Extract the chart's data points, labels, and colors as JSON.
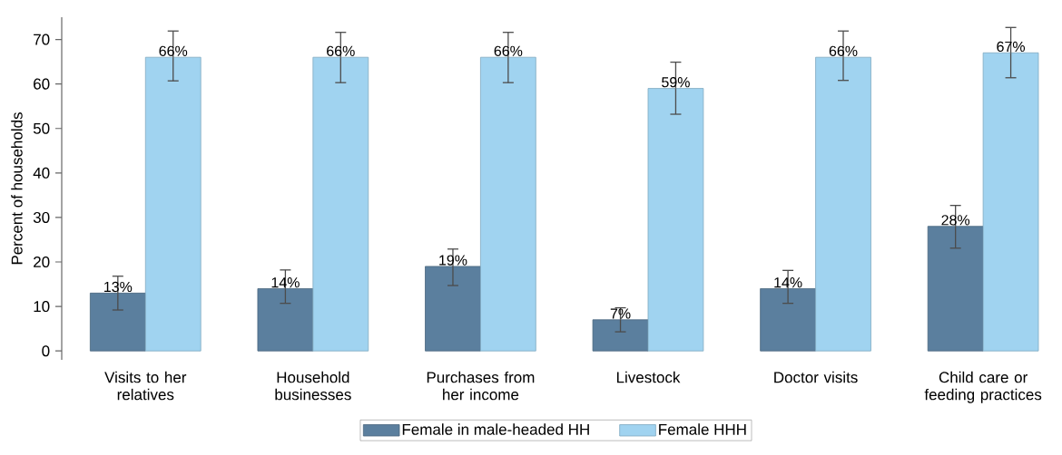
{
  "chart_data": {
    "type": "bar",
    "ylabel": "Percent of households",
    "categories": [
      "Visits to her relatives",
      "Household businesses",
      "Purchases from her income",
      "Livestock",
      "Doctor visits",
      "Child care or feeding practices"
    ],
    "series": [
      {
        "name": "Female in male-headed HH",
        "color": "#5b7f9e",
        "values": [
          13,
          14,
          19,
          7,
          14,
          28
        ],
        "value_labels": [
          "13%",
          "14%",
          "19%",
          "7%",
          "14%",
          "28%"
        ],
        "errors": [
          [
            9.2,
            16.8
          ],
          [
            10.7,
            18.2
          ],
          [
            14.7,
            22.9
          ],
          [
            4.3,
            9.7
          ],
          [
            10.7,
            18.1
          ],
          [
            23.1,
            32.7
          ]
        ]
      },
      {
        "name": "Female HHH",
        "color": "#a0d3f0",
        "values": [
          66,
          66,
          66,
          59,
          66,
          67
        ],
        "value_labels": [
          "66%",
          "66%",
          "66%",
          "59%",
          "66%",
          "67%"
        ],
        "errors": [
          [
            60.7,
            71.9
          ],
          [
            60.3,
            71.6
          ],
          [
            60.3,
            71.6
          ],
          [
            53.2,
            64.9
          ],
          [
            60.8,
            71.9
          ],
          [
            61.4,
            72.7
          ]
        ]
      }
    ],
    "ylim": [
      -2,
      75
    ],
    "yticks": [
      0,
      10,
      20,
      30,
      40,
      50,
      60,
      70
    ],
    "grid": false,
    "legend": "bottom"
  }
}
